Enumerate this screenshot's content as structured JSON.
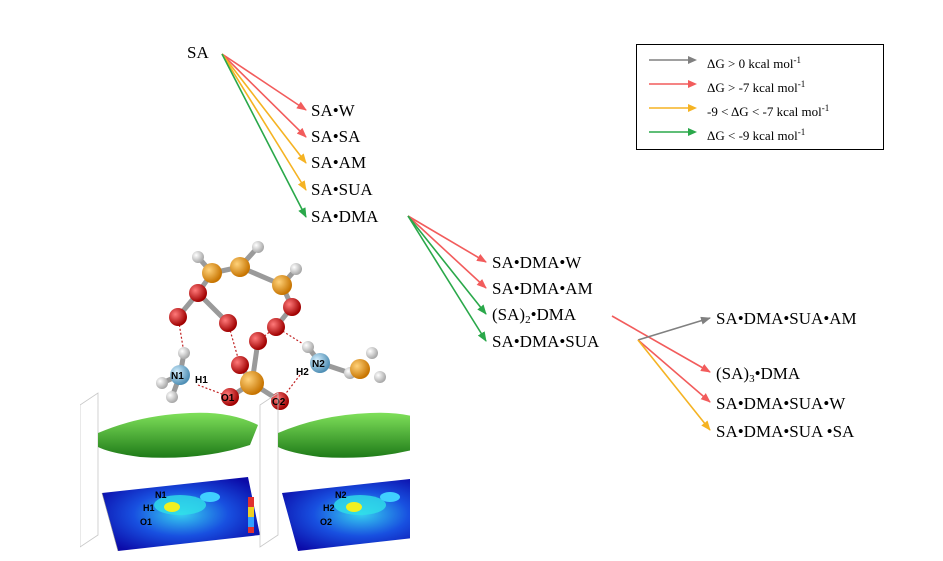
{
  "colors": {
    "gray": "#808080",
    "red": "#f25c5c",
    "orange": "#f5b323",
    "green": "#2aa84a",
    "phosphorus": "#e8941a",
    "oxygen": "#d81414",
    "nitrogen": "#7ab6d8",
    "hydrogen": "#dcdcdc"
  },
  "legend": [
    {
      "color": "gray",
      "pre": "ΔG > 0 kcal mol",
      "sup": "-1"
    },
    {
      "color": "red",
      "pre": "ΔG > -7 kcal mol",
      "sup": "-1"
    },
    {
      "color": "orange",
      "pre": "-9 < ΔG < -7 kcal mol",
      "sup": "-1"
    },
    {
      "color": "green",
      "pre": "ΔG < -9 kcal mol",
      "sup": "-1"
    }
  ],
  "nodes": {
    "sa": "SA",
    "sa_w": "SA•W",
    "sa_sa": "SA•SA",
    "sa_am": "SA•AM",
    "sa_sua": "SA•SUA",
    "sa_dma": "SA•DMA",
    "sa_dma_w": "SA•DMA•W",
    "sa_dma_am": "SA•DMA•AM",
    "sa2_dma_pre": "(SA)",
    "sa2_dma_sub": "2",
    "sa2_dma_post": "•DMA",
    "sa_dma_sua": "SA•DMA•SUA",
    "sa_dma_sua_am": "SA•DMA•SUA•AM",
    "sa3_dma_pre": "(SA)",
    "sa3_dma_sub": "3",
    "sa3_dma_post": "•DMA",
    "sa_dma_sua_w": "SA•DMA•SUA•W",
    "sa_dma_sua_sa": "SA•DMA•SUA •SA"
  },
  "atom_labels": {
    "n1": "N1",
    "h1": "H1",
    "o1": "O1",
    "n2": "N2",
    "h2": "H2",
    "o2": "O2"
  },
  "map_labels": {
    "left": [
      "N1",
      "H1",
      "O1"
    ],
    "right": [
      "N2",
      "H2",
      "O2"
    ]
  },
  "arrows": [
    {
      "from": "sa",
      "to": "sa_w",
      "color": "red"
    },
    {
      "from": "sa",
      "to": "sa_sa",
      "color": "red"
    },
    {
      "from": "sa",
      "to": "sa_am",
      "color": "orange"
    },
    {
      "from": "sa",
      "to": "sa_sua",
      "color": "orange"
    },
    {
      "from": "sa",
      "to": "sa_dma",
      "color": "green"
    },
    {
      "from": "sa_dma",
      "to": "sa_dma_w",
      "color": "red"
    },
    {
      "from": "sa_dma",
      "to": "sa_dma_am",
      "color": "red"
    },
    {
      "from": "sa_dma",
      "to": "sa2_dma",
      "color": "green"
    },
    {
      "from": "sa_dma",
      "to": "sa_dma_sua",
      "color": "green"
    },
    {
      "from": "sa2_dma",
      "to": "sa3_dma",
      "color": "red"
    },
    {
      "from": "sa_dma_sua",
      "to": "sa_dma_sua_am",
      "color": "gray"
    },
    {
      "from": "sa_dma_sua",
      "to": "sa_dma_sua_w",
      "color": "red"
    },
    {
      "from": "sa_dma_sua",
      "to": "sa_dma_sua_sa",
      "color": "orange"
    }
  ]
}
